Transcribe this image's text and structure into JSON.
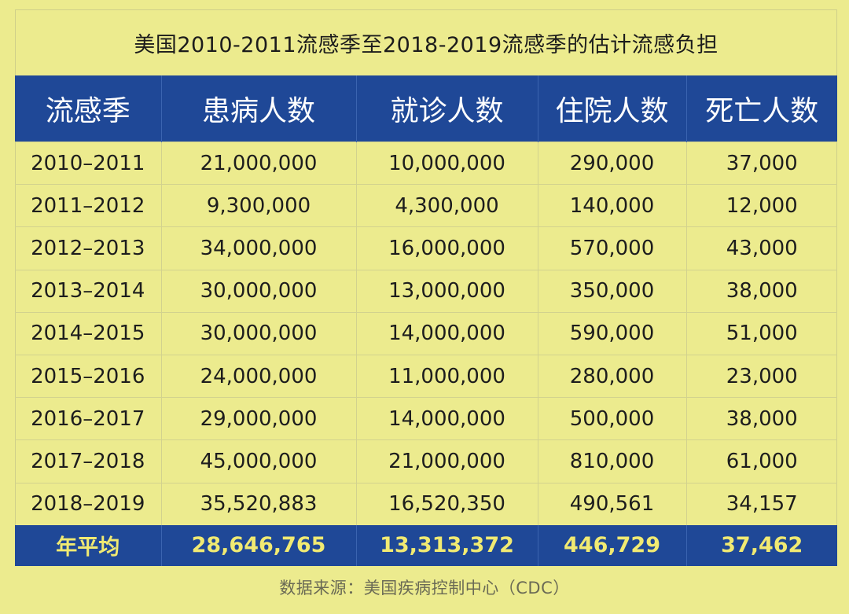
{
  "title": "美国2010-2011流感季至2018-2019流感季的估计流感负担",
  "headers": [
    "流感季",
    "患病人数",
    "就诊人数",
    "住院人数",
    "死亡人数"
  ],
  "rows": [
    [
      "2010–2011",
      "21,000,000",
      "10,000,000",
      "290,000",
      "37,000"
    ],
    [
      "2011–2012",
      "9,300,000",
      "4,300,000",
      "140,000",
      "12,000"
    ],
    [
      "2012–2013",
      "34,000,000",
      "16,000,000",
      "570,000",
      "43,000"
    ],
    [
      "2013–2014",
      "30,000,000",
      "13,000,000",
      "350,000",
      "38,000"
    ],
    [
      "2014–2015",
      "30,000,000",
      "14,000,000",
      "590,000",
      "51,000"
    ],
    [
      "2015–2016",
      "24,000,000",
      "11,000,000",
      "280,000",
      "23,000"
    ],
    [
      "2016–2017",
      "29,000,000",
      "14,000,000",
      "500,000",
      "38,000"
    ],
    [
      "2017–2018",
      "45,000,000",
      "21,000,000",
      "810,000",
      "61,000"
    ],
    [
      "2018–2019",
      "35,520,883",
      "16,520,350",
      "490,561",
      "34,157"
    ]
  ],
  "average": [
    "年平均",
    "28,646,765",
    "13,313,372",
    "446,729",
    "37,462"
  ],
  "source": "数据来源：美国疾病控制中心（CDC）",
  "colors": {
    "background": "#eceb8e",
    "header_bg": "#1f4897",
    "header_text": "#ffffff",
    "average_text": "#f1ea72"
  }
}
